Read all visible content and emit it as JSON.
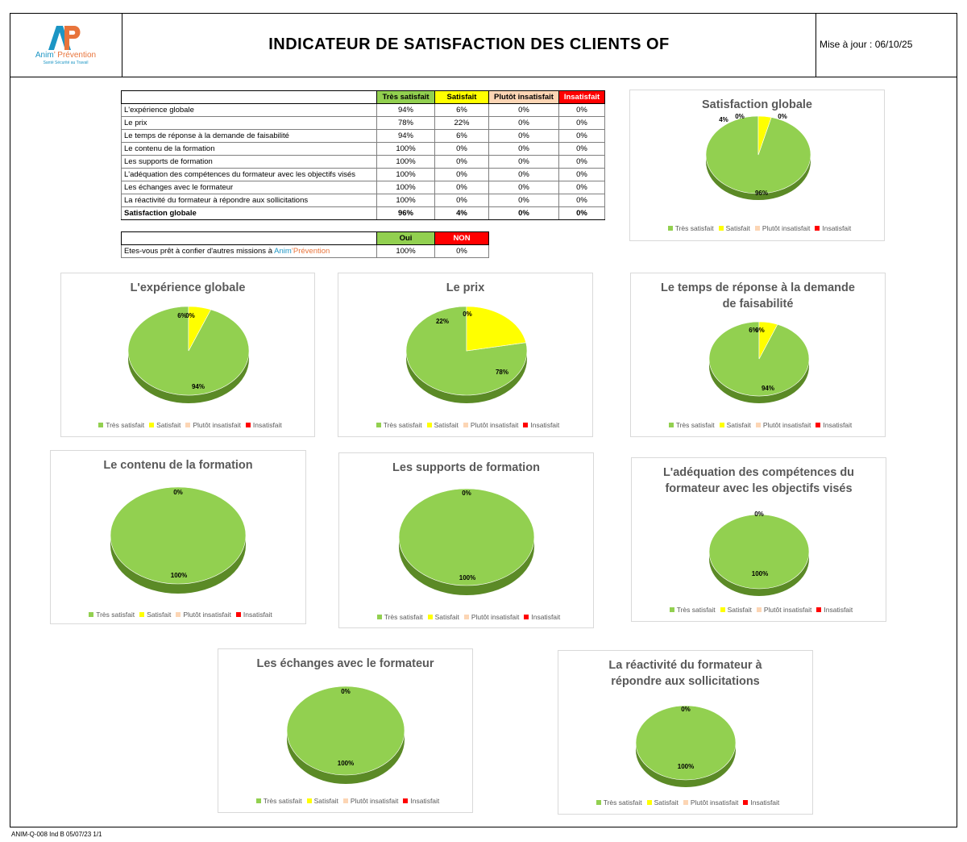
{
  "header": {
    "title": "INDICATEUR DE SATISFACTION DES CLIENTS OF",
    "update": "Mise à jour : 06/10/25",
    "logo_name_1": "Anim",
    "logo_name_2": "’ Prévention",
    "logo_tagline": "Santé Sécurité au Travail"
  },
  "table": {
    "columns": [
      "Très satisfait",
      "Satisfait",
      "Plutôt insatisfait",
      "Insatisfait"
    ],
    "rows": [
      {
        "label": "L'expérience globale",
        "values": [
          "94%",
          "6%",
          "0%",
          "0%"
        ]
      },
      {
        "label": "Le prix",
        "values": [
          "78%",
          "22%",
          "0%",
          "0%"
        ]
      },
      {
        "label": "Le temps de réponse à la demande de faisabilité",
        "values": [
          "94%",
          "6%",
          "0%",
          "0%"
        ]
      },
      {
        "label": "Le contenu de la formation",
        "values": [
          "100%",
          "0%",
          "0%",
          "0%"
        ]
      },
      {
        "label": "Les supports de formation",
        "values": [
          "100%",
          "0%",
          "0%",
          "0%"
        ]
      },
      {
        "label": "L'adéquation des compétences du formateur avec les objectifs visés",
        "values": [
          "100%",
          "0%",
          "0%",
          "0%"
        ]
      },
      {
        "label": "Les échanges avec le formateur",
        "values": [
          "100%",
          "0%",
          "0%",
          "0%"
        ]
      },
      {
        "label": "La réactivité du formateur à répondre aux sollicitations",
        "values": [
          "100%",
          "0%",
          "0%",
          "0%"
        ]
      }
    ],
    "total": {
      "label": "Satisfaction globale",
      "values": [
        "96%",
        "4%",
        "0%",
        "0%"
      ]
    }
  },
  "table2": {
    "columns": [
      "Oui",
      "NON"
    ],
    "label_prefix": "Etes-vous prêt à confier d'autres missions à ",
    "brand_1": "Anim",
    "brand_2": "’Prévention",
    "values": [
      "100%",
      "0%"
    ]
  },
  "colors": {
    "tres_satisfait": "#92d050",
    "tres_satisfait_side": "#5b8a26",
    "satisfait": "#ffff00",
    "satisfait_side": "#b3b300",
    "plutot_insatisfait": "#fcd5b4",
    "insatisfait": "#ff0000"
  },
  "legend_labels": [
    "Très satisfait",
    "Satisfait",
    "Plutôt insatisfait",
    "Insatisfait"
  ],
  "chart_data": [
    {
      "type": "pie",
      "title": "Satisfaction globale",
      "categories": [
        "Très satisfait",
        "Satisfait",
        "Plutôt insatisfait",
        "Insatisfait"
      ],
      "values": [
        96,
        4,
        0,
        0
      ],
      "labels": [
        "96%",
        "4%",
        "0%",
        "0%"
      ]
    },
    {
      "type": "pie",
      "title": "L'expérience globale",
      "categories": [
        "Très satisfait",
        "Satisfait",
        "Plutôt insatisfait",
        "Insatisfait"
      ],
      "values": [
        94,
        6,
        0,
        0
      ],
      "labels": [
        "94%",
        "6%",
        "0%",
        "0%"
      ]
    },
    {
      "type": "pie",
      "title": "Le prix",
      "categories": [
        "Très satisfait",
        "Satisfait",
        "Plutôt insatisfait",
        "Insatisfait"
      ],
      "values": [
        78,
        22,
        0,
        0
      ],
      "labels": [
        "78%",
        "22%",
        "0%",
        "0%"
      ]
    },
    {
      "type": "pie",
      "title": "Le temps de réponse à la demande de faisabilité",
      "categories": [
        "Très satisfait",
        "Satisfait",
        "Plutôt insatisfait",
        "Insatisfait"
      ],
      "values": [
        94,
        6,
        0,
        0
      ],
      "labels": [
        "94%",
        "6%",
        "0%",
        "0%"
      ]
    },
    {
      "type": "pie",
      "title": "Le contenu de la formation",
      "categories": [
        "Très satisfait",
        "Satisfait",
        "Plutôt insatisfait",
        "Insatisfait"
      ],
      "values": [
        100,
        0,
        0,
        0
      ],
      "labels": [
        "100%",
        "0%"
      ]
    },
    {
      "type": "pie",
      "title": "Les supports de formation",
      "categories": [
        "Très satisfait",
        "Satisfait",
        "Plutôt insatisfait",
        "Insatisfait"
      ],
      "values": [
        100,
        0,
        0,
        0
      ],
      "labels": [
        "100%",
        "0%"
      ]
    },
    {
      "type": "pie",
      "title": "L'adéquation des compétences du formateur avec les objectifs visés",
      "categories": [
        "Très satisfait",
        "Satisfait",
        "Plutôt insatisfait",
        "Insatisfait"
      ],
      "values": [
        100,
        0,
        0,
        0
      ],
      "labels": [
        "100%",
        "0%"
      ]
    },
    {
      "type": "pie",
      "title": "Les échanges avec le formateur",
      "categories": [
        "Très satisfait",
        "Satisfait",
        "Plutôt insatisfait",
        "Insatisfait"
      ],
      "values": [
        100,
        0,
        0,
        0
      ],
      "labels": [
        "100%",
        "0%"
      ]
    },
    {
      "type": "pie",
      "title": "La réactivité du formateur à répondre aux sollicitations",
      "categories": [
        "Très satisfait",
        "Satisfait",
        "Plutôt insatisfait",
        "Insatisfait"
      ],
      "values": [
        100,
        0,
        0,
        0
      ],
      "labels": [
        "100%",
        "0%"
      ]
    }
  ],
  "footer": "ANIM-Q-008 Ind B 05/07/23 1/1"
}
